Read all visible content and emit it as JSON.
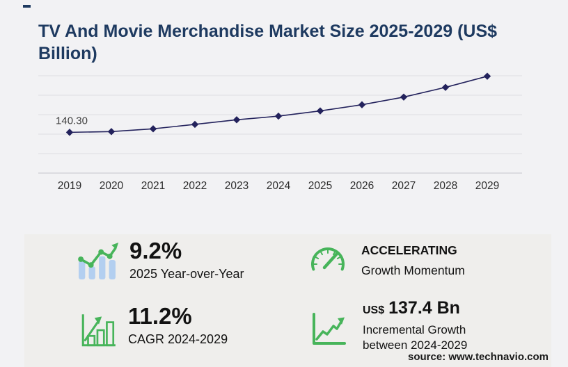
{
  "title": "TV And Movie Merchandise Market Size 2025-2029 (US$ Billion)",
  "chart_data": {
    "type": "line",
    "title": "TV And Movie Merchandise Market Size 2025-2029 (US$ Billion)",
    "x": [
      2019,
      2020,
      2021,
      2022,
      2023,
      2024,
      2025,
      2026,
      2027,
      2028,
      2029
    ],
    "series": [
      {
        "name": "Market Size (US$ Billion)",
        "values": [
          140.3,
          142.8,
          152.3,
          167.6,
          183.4,
          196.0,
          214.1,
          235.2,
          261.6,
          295.1,
          333.4
        ]
      }
    ],
    "point_labels": [
      {
        "index": 0,
        "text": "140.30"
      }
    ],
    "xlabel": "",
    "ylabel": "",
    "ylim": [
      0,
      335
    ],
    "grid": true,
    "legend": "none",
    "line_color": "#23225c",
    "marker": "diamond"
  },
  "stats": [
    {
      "icon": "growth-bars-icon",
      "value": "9.2%",
      "label": "2025 Year-over-Year"
    },
    {
      "icon": "speedometer-icon",
      "value": "ACCELERATING",
      "label": "Growth Momentum"
    },
    {
      "icon": "bar-chart-growth-icon",
      "value": "11.2%",
      "label": "CAGR 2024-2029"
    },
    {
      "icon": "line-chart-growth-icon",
      "value_prefix": "US$",
      "value": "137.4 Bn",
      "label": "Incremental Growth",
      "label2": "between 2024-2029"
    }
  ],
  "source": "source: www.technavio.com",
  "colors": {
    "title_navy": "#1e3a60",
    "line_navy": "#23225c",
    "accent_green": "#47b45a",
    "bar_blue": "#b3cff0",
    "panel_bg": "#efeeec",
    "page_bg": "#f2f2f4"
  }
}
